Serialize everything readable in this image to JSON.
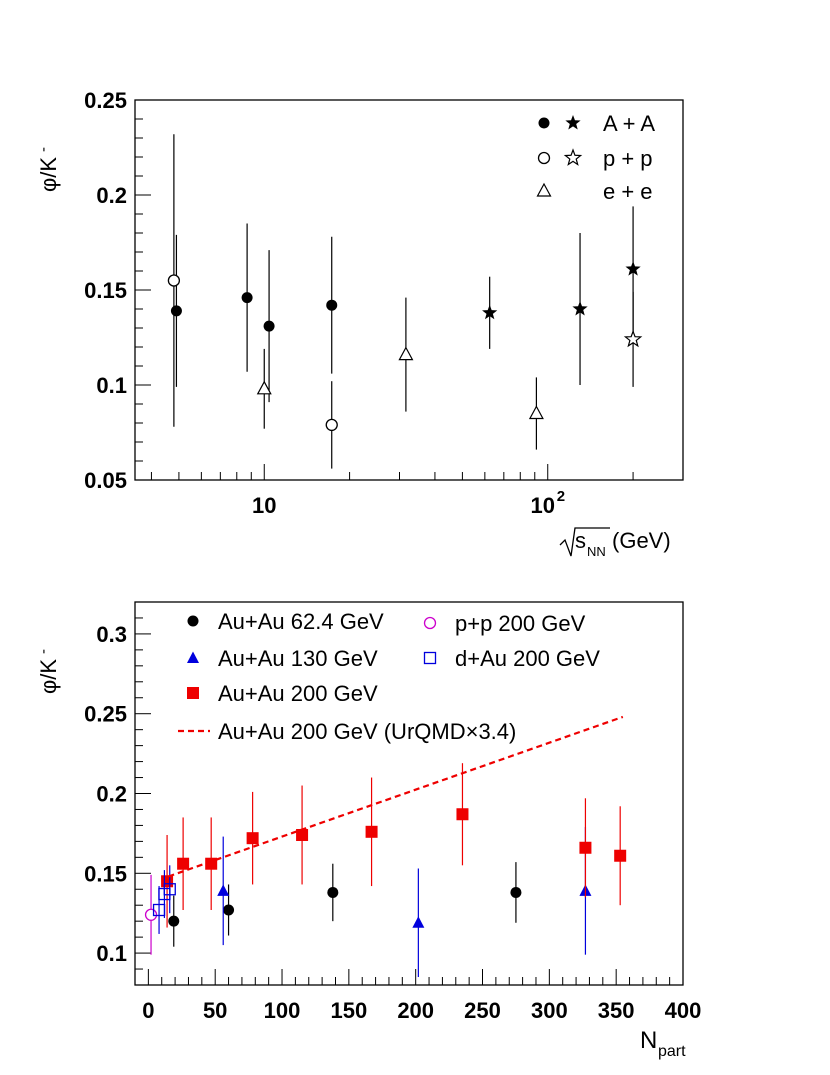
{
  "chart_data": [
    {
      "type": "scatter",
      "title": "",
      "xlabel": "(GeV)",
      "xlabel_sqrt": "s",
      "xlabel_sub": "NN",
      "ylabel": "φ/K",
      "ylabel_sup": "-",
      "xscale": "log",
      "xlim": [
        3.5,
        300
      ],
      "ylim": [
        0.05,
        0.25
      ],
      "x_ticks": [
        {
          "v": 10,
          "label": "10",
          "sup": ""
        },
        {
          "v": 100,
          "label": "10",
          "sup": "2"
        }
      ],
      "y_ticks": [
        {
          "v": 0.05,
          "label": "0.05"
        },
        {
          "v": 0.1,
          "label": "0.1"
        },
        {
          "v": 0.15,
          "label": "0.15"
        },
        {
          "v": 0.2,
          "label": "0.2"
        },
        {
          "v": 0.25,
          "label": "0.25"
        }
      ],
      "legend_position": "top-right",
      "legend": [
        {
          "label": "A + A",
          "markers": [
            "filled-circle",
            "filled-star"
          ]
        },
        {
          "label": "p + p",
          "markers": [
            "open-circle",
            "open-star"
          ]
        },
        {
          "label": "e + e",
          "markers": [
            "open-triangle"
          ]
        }
      ],
      "series": [
        {
          "marker": "filled-circle",
          "color": "#000000",
          "points": [
            {
              "x": 4.9,
              "y": 0.139,
              "err": 0.04
            },
            {
              "x": 8.7,
              "y": 0.146,
              "err": 0.039
            },
            {
              "x": 10.4,
              "y": 0.131,
              "err": 0.04
            },
            {
              "x": 17.3,
              "y": 0.142,
              "err": 0.036
            }
          ]
        },
        {
          "marker": "filled-star",
          "color": "#000000",
          "points": [
            {
              "x": 62.4,
              "y": 0.138,
              "err": 0.019
            },
            {
              "x": 130,
              "y": 0.14,
              "err": 0.04
            },
            {
              "x": 200,
              "y": 0.161,
              "err": 0.033
            }
          ]
        },
        {
          "marker": "open-circle",
          "color": "#000000",
          "points": [
            {
              "x": 4.8,
              "y": 0.155,
              "err": 0.077
            },
            {
              "x": 17.3,
              "y": 0.079,
              "err": 0.023
            }
          ]
        },
        {
          "marker": "open-star",
          "color": "#000000",
          "points": [
            {
              "x": 200,
              "y": 0.124,
              "err": 0.025
            }
          ]
        },
        {
          "marker": "open-triangle",
          "color": "#000000",
          "points": [
            {
              "x": 10.0,
              "y": 0.098,
              "err": 0.021
            },
            {
              "x": 31.6,
              "y": 0.116,
              "err": 0.03
            },
            {
              "x": 91.2,
              "y": 0.085,
              "err": 0.019
            }
          ]
        }
      ]
    },
    {
      "type": "scatter",
      "title": "",
      "xlabel": "N",
      "xlabel_sub": "part",
      "ylabel": "φ/K",
      "ylabel_sup": "-",
      "xlim": [
        -10,
        400
      ],
      "ylim": [
        0.08,
        0.32
      ],
      "x_ticks": [
        0,
        50,
        100,
        150,
        200,
        250,
        300,
        350,
        400
      ],
      "y_ticks": [
        {
          "v": 0.1,
          "label": "0.1"
        },
        {
          "v": 0.15,
          "label": "0.15"
        },
        {
          "v": 0.2,
          "label": "0.2"
        },
        {
          "v": 0.25,
          "label": "0.25"
        },
        {
          "v": 0.3,
          "label": "0.3"
        }
      ],
      "legend_position": "top",
      "series": [
        {
          "name": "Au+Au 62.4 GeV",
          "marker": "filled-circle",
          "color": "#000000",
          "points": [
            {
              "x": 19,
              "y": 0.12,
              "err": 0.016
            },
            {
              "x": 60,
              "y": 0.127,
              "err": 0.016
            },
            {
              "x": 138,
              "y": 0.138,
              "err": 0.018
            },
            {
              "x": 275,
              "y": 0.138,
              "err": 0.019
            }
          ]
        },
        {
          "name": "Au+Au 130 GeV",
          "marker": "filled-triangle",
          "color": "#0000dd",
          "points": [
            {
              "x": 56,
              "y": 0.139,
              "err": 0.034
            },
            {
              "x": 202,
              "y": 0.119,
              "err": 0.034
            },
            {
              "x": 327,
              "y": 0.139,
              "err": 0.04
            }
          ]
        },
        {
          "name": "Au+Au 200 GeV",
          "marker": "filled-square",
          "color": "#ee0000",
          "points": [
            {
              "x": 14,
              "y": 0.145,
              "err": 0.029
            },
            {
              "x": 26,
              "y": 0.156,
              "err": 0.029
            },
            {
              "x": 47,
              "y": 0.156,
              "err": 0.029
            },
            {
              "x": 78,
              "y": 0.172,
              "err": 0.029
            },
            {
              "x": 115,
              "y": 0.174,
              "err": 0.031
            },
            {
              "x": 167,
              "y": 0.176,
              "err": 0.034
            },
            {
              "x": 235,
              "y": 0.187,
              "err": 0.032
            },
            {
              "x": 327,
              "y": 0.166,
              "err": 0.031
            },
            {
              "x": 353,
              "y": 0.161,
              "err": 0.031
            }
          ]
        },
        {
          "name": "p+p 200 GeV",
          "marker": "open-circle",
          "color": "#cc00cc",
          "points": [
            {
              "x": 2,
              "y": 0.124,
              "err": 0.025
            }
          ]
        },
        {
          "name": "d+Au 200 GeV",
          "marker": "open-square",
          "color": "#0000dd",
          "points": [
            {
              "x": 8,
              "y": 0.127,
              "err": 0.015
            },
            {
              "x": 12,
              "y": 0.137,
              "err": 0.015
            },
            {
              "x": 16,
              "y": 0.14,
              "err": 0.015
            }
          ]
        },
        {
          "name": "Au+Au 200 GeV (UrQMD×3.4)",
          "marker": "dashed-line",
          "color": "#ee0000",
          "line": [
            [
              15,
              0.148
            ],
            [
              355,
              0.248
            ]
          ]
        }
      ]
    }
  ]
}
